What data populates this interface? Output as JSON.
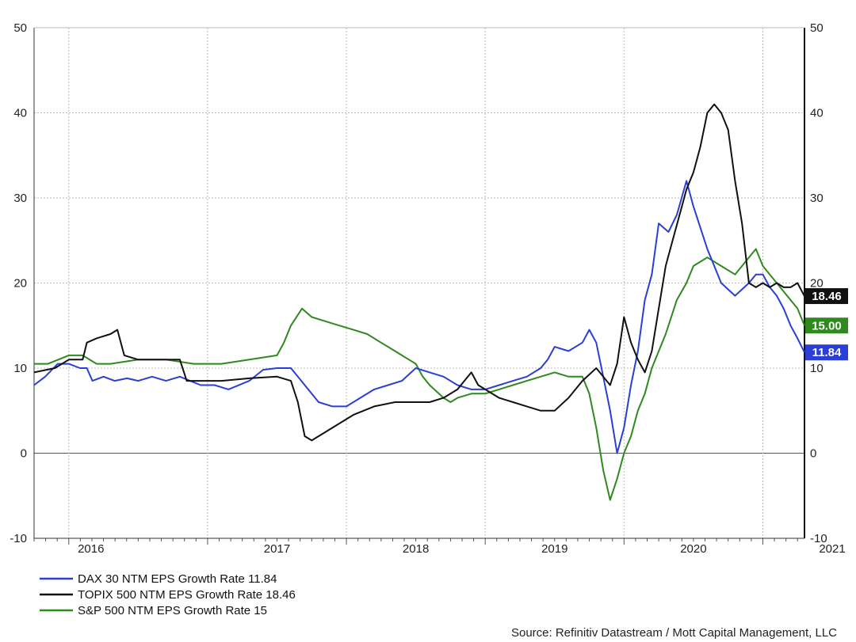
{
  "chart_data": {
    "type": "line",
    "ylim": [
      -10,
      50
    ],
    "yticks": [
      "-10",
      "0",
      "10",
      "20",
      "30",
      "40",
      "50"
    ],
    "year_labels": [
      "2016",
      "2017",
      "2018",
      "2019",
      "2020",
      "2021"
    ],
    "x_range": [
      2015.75,
      2021.3
    ],
    "grid": true,
    "legend_position": "bottom-left",
    "source": "Source: Refinitiv Datastream / Mott Capital Management, LLC",
    "series": [
      {
        "name": "DAX 30 NTM EPS Growth Rate 11.84",
        "color": "#2b3ed6",
        "last_label": "11.84",
        "points": [
          [
            2015.75,
            8
          ],
          [
            2015.83,
            9
          ],
          [
            2015.92,
            10.5
          ],
          [
            2016.0,
            10.5
          ],
          [
            2016.08,
            10
          ],
          [
            2016.13,
            10
          ],
          [
            2016.17,
            8.5
          ],
          [
            2016.25,
            9
          ],
          [
            2016.33,
            8.5
          ],
          [
            2016.42,
            8.8
          ],
          [
            2016.5,
            8.5
          ],
          [
            2016.6,
            9
          ],
          [
            2016.7,
            8.5
          ],
          [
            2016.8,
            9
          ],
          [
            2016.95,
            8
          ],
          [
            2017.05,
            8
          ],
          [
            2017.15,
            7.5
          ],
          [
            2017.3,
            8.5
          ],
          [
            2017.4,
            9.8
          ],
          [
            2017.5,
            10
          ],
          [
            2017.6,
            10
          ],
          [
            2017.65,
            9
          ],
          [
            2017.7,
            8
          ],
          [
            2017.8,
            6
          ],
          [
            2017.9,
            5.5
          ],
          [
            2018.0,
            5.5
          ],
          [
            2018.1,
            6.5
          ],
          [
            2018.2,
            7.5
          ],
          [
            2018.3,
            8
          ],
          [
            2018.4,
            8.5
          ],
          [
            2018.5,
            10
          ],
          [
            2018.6,
            9.5
          ],
          [
            2018.7,
            9
          ],
          [
            2018.8,
            8
          ],
          [
            2018.9,
            7.5
          ],
          [
            2019.0,
            7.5
          ],
          [
            2019.1,
            8
          ],
          [
            2019.2,
            8.5
          ],
          [
            2019.3,
            9
          ],
          [
            2019.4,
            10
          ],
          [
            2019.45,
            11
          ],
          [
            2019.5,
            12.5
          ],
          [
            2019.6,
            12
          ],
          [
            2019.7,
            13
          ],
          [
            2019.75,
            14.5
          ],
          [
            2019.8,
            13
          ],
          [
            2019.85,
            9
          ],
          [
            2019.9,
            5
          ],
          [
            2019.95,
            0
          ],
          [
            2020.0,
            3
          ],
          [
            2020.05,
            8
          ],
          [
            2020.1,
            12
          ],
          [
            2020.15,
            18
          ],
          [
            2020.2,
            21
          ],
          [
            2020.25,
            27
          ],
          [
            2020.32,
            26
          ],
          [
            2020.38,
            28
          ],
          [
            2020.45,
            32
          ],
          [
            2020.5,
            29
          ],
          [
            2020.6,
            24
          ],
          [
            2020.7,
            20
          ],
          [
            2020.8,
            18.5
          ],
          [
            2020.9,
            20
          ],
          [
            2020.95,
            21
          ],
          [
            2021.0,
            21
          ],
          [
            2021.05,
            19.5
          ],
          [
            2021.1,
            18.5
          ],
          [
            2021.15,
            17
          ],
          [
            2021.2,
            15
          ],
          [
            2021.25,
            13.5
          ],
          [
            2021.3,
            11.84
          ]
        ]
      },
      {
        "name": "TOPIX 500 NTM EPS Growth Rate 18.46",
        "color": "#111111",
        "last_label": "18.46",
        "points": [
          [
            2015.75,
            9.5
          ],
          [
            2015.9,
            10
          ],
          [
            2016.0,
            11
          ],
          [
            2016.1,
            11
          ],
          [
            2016.13,
            13
          ],
          [
            2016.2,
            13.5
          ],
          [
            2016.3,
            14
          ],
          [
            2016.35,
            14.5
          ],
          [
            2016.4,
            11.5
          ],
          [
            2016.5,
            11
          ],
          [
            2016.6,
            11
          ],
          [
            2016.8,
            11
          ],
          [
            2016.85,
            8.5
          ],
          [
            2016.95,
            8.5
          ],
          [
            2017.1,
            8.5
          ],
          [
            2017.3,
            8.8
          ],
          [
            2017.5,
            9
          ],
          [
            2017.6,
            8.5
          ],
          [
            2017.65,
            6
          ],
          [
            2017.7,
            2
          ],
          [
            2017.75,
            1.5
          ],
          [
            2017.85,
            2.5
          ],
          [
            2017.95,
            3.5
          ],
          [
            2018.05,
            4.5
          ],
          [
            2018.2,
            5.5
          ],
          [
            2018.35,
            6
          ],
          [
            2018.5,
            6
          ],
          [
            2018.6,
            6
          ],
          [
            2018.7,
            6.5
          ],
          [
            2018.8,
            7.5
          ],
          [
            2018.85,
            8.5
          ],
          [
            2018.9,
            9.5
          ],
          [
            2018.95,
            8
          ],
          [
            2019.0,
            7.5
          ],
          [
            2019.1,
            6.5
          ],
          [
            2019.2,
            6
          ],
          [
            2019.3,
            5.5
          ],
          [
            2019.4,
            5
          ],
          [
            2019.5,
            5
          ],
          [
            2019.6,
            6.5
          ],
          [
            2019.7,
            8.5
          ],
          [
            2019.8,
            10
          ],
          [
            2019.85,
            9
          ],
          [
            2019.9,
            8
          ],
          [
            2019.95,
            10.5
          ],
          [
            2020.0,
            16
          ],
          [
            2020.05,
            13
          ],
          [
            2020.1,
            11
          ],
          [
            2020.15,
            9.5
          ],
          [
            2020.2,
            12
          ],
          [
            2020.25,
            17
          ],
          [
            2020.3,
            22
          ],
          [
            2020.35,
            25
          ],
          [
            2020.4,
            28
          ],
          [
            2020.45,
            31
          ],
          [
            2020.5,
            33
          ],
          [
            2020.55,
            36
          ],
          [
            2020.6,
            40
          ],
          [
            2020.65,
            41
          ],
          [
            2020.7,
            40
          ],
          [
            2020.75,
            38
          ],
          [
            2020.8,
            32
          ],
          [
            2020.85,
            27
          ],
          [
            2020.9,
            20
          ],
          [
            2020.95,
            19.5
          ],
          [
            2021.0,
            20
          ],
          [
            2021.05,
            19.5
          ],
          [
            2021.1,
            20
          ],
          [
            2021.15,
            19.5
          ],
          [
            2021.2,
            19.5
          ],
          [
            2021.25,
            20
          ],
          [
            2021.3,
            18.46
          ]
        ]
      },
      {
        "name": "S&P 500 NTM EPS Growth Rate 15",
        "color": "#2e8a1e",
        "last_label": "15.00",
        "points": [
          [
            2015.75,
            10.5
          ],
          [
            2015.85,
            10.5
          ],
          [
            2016.0,
            11.5
          ],
          [
            2016.1,
            11.5
          ],
          [
            2016.2,
            10.5
          ],
          [
            2016.3,
            10.5
          ],
          [
            2016.5,
            11
          ],
          [
            2016.7,
            11
          ],
          [
            2016.9,
            10.5
          ],
          [
            2017.1,
            10.5
          ],
          [
            2017.3,
            11
          ],
          [
            2017.5,
            11.5
          ],
          [
            2017.55,
            13
          ],
          [
            2017.6,
            15
          ],
          [
            2017.68,
            17
          ],
          [
            2017.75,
            16
          ],
          [
            2017.85,
            15.5
          ],
          [
            2017.95,
            15
          ],
          [
            2018.05,
            14.5
          ],
          [
            2018.15,
            14
          ],
          [
            2018.25,
            13
          ],
          [
            2018.35,
            12
          ],
          [
            2018.45,
            11
          ],
          [
            2018.5,
            10.5
          ],
          [
            2018.55,
            9
          ],
          [
            2018.6,
            8
          ],
          [
            2018.7,
            6.5
          ],
          [
            2018.75,
            6
          ],
          [
            2018.8,
            6.5
          ],
          [
            2018.9,
            7
          ],
          [
            2019.0,
            7
          ],
          [
            2019.1,
            7.5
          ],
          [
            2019.2,
            8
          ],
          [
            2019.3,
            8.5
          ],
          [
            2019.4,
            9
          ],
          [
            2019.5,
            9.5
          ],
          [
            2019.6,
            9
          ],
          [
            2019.7,
            9
          ],
          [
            2019.75,
            7
          ],
          [
            2019.8,
            3
          ],
          [
            2019.85,
            -2
          ],
          [
            2019.9,
            -5.5
          ],
          [
            2019.95,
            -3
          ],
          [
            2020.0,
            0
          ],
          [
            2020.05,
            2
          ],
          [
            2020.1,
            5
          ],
          [
            2020.15,
            7
          ],
          [
            2020.2,
            10
          ],
          [
            2020.3,
            14
          ],
          [
            2020.38,
            18
          ],
          [
            2020.45,
            20
          ],
          [
            2020.5,
            22
          ],
          [
            2020.6,
            23
          ],
          [
            2020.7,
            22
          ],
          [
            2020.8,
            21
          ],
          [
            2020.85,
            22
          ],
          [
            2020.9,
            23
          ],
          [
            2020.95,
            24
          ],
          [
            2021.0,
            22
          ],
          [
            2021.05,
            21
          ],
          [
            2021.1,
            20
          ],
          [
            2021.15,
            19
          ],
          [
            2021.2,
            18
          ],
          [
            2021.25,
            17
          ],
          [
            2021.3,
            15
          ]
        ]
      }
    ]
  }
}
